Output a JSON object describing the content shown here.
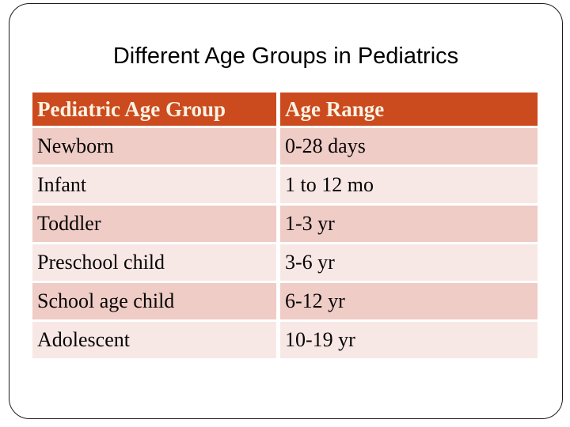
{
  "slide": {
    "title": "Different Age Groups in Pediatrics"
  },
  "table": {
    "columns": [
      "Pediatric Age Group",
      "Age Range"
    ],
    "rows": [
      {
        "group": "Newborn",
        "range": "0-28 days"
      },
      {
        "group": "Infant",
        "range": "1 to 12 mo"
      },
      {
        "group": "Toddler",
        "range": "1-3 yr"
      },
      {
        "group": "Preschool child",
        "range": "3-6 yr"
      },
      {
        "group": "School age child",
        "range": "6-12 yr"
      },
      {
        "group": "Adolescent",
        "range": "10-19 yr"
      }
    ]
  },
  "colors": {
    "header_bg": "#CB4A1E",
    "header_text": "#FBF2E2",
    "row_dark": "#EFCCC6",
    "row_light": "#F8E8E5",
    "title_text": "#000000",
    "body_text": "#060606",
    "border_color": "#1C1C1C"
  }
}
